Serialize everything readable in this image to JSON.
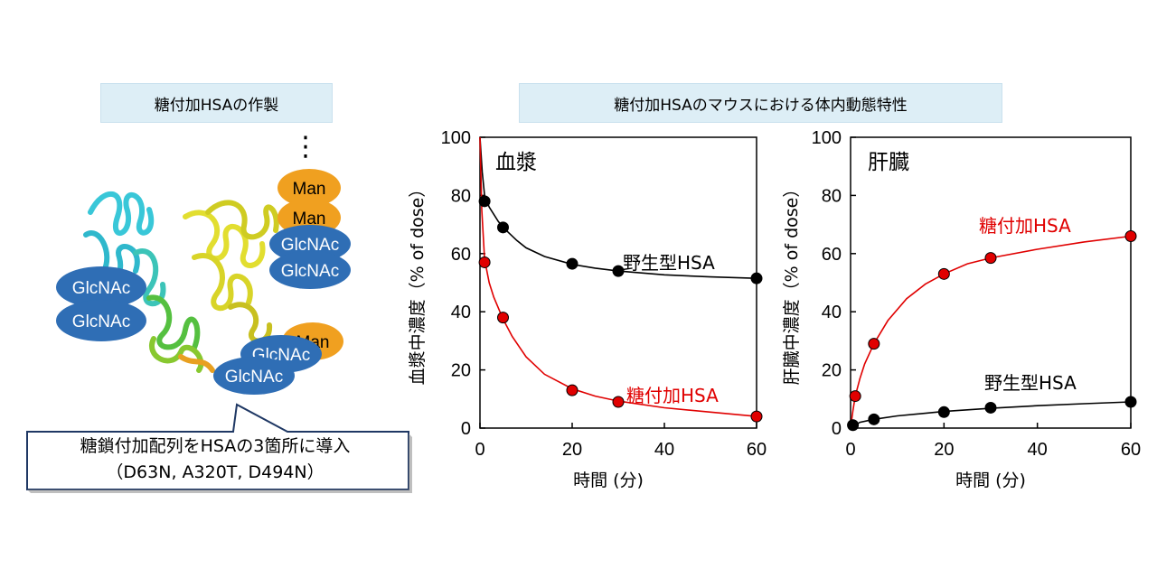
{
  "left_title": "糖付加HSAの作製",
  "right_title": "糖付加HSAのマウスにおける体内動態特性",
  "diagram": {
    "glycans": {
      "left": [
        "GlcNAc",
        "GlcNAc"
      ],
      "top_right": [
        "Man",
        "Man",
        "GlcNAc",
        "GlcNAc"
      ],
      "bottom_right": [
        "Man",
        "GlcNAc",
        "GlcNAc"
      ]
    },
    "ellipsis": "⋮",
    "callout": [
      "糖鎖付加配列をHSAの3箇所に導入",
      "（D63N, A320T, D494N）"
    ],
    "colors": {
      "glcnac": "#2f6eb5",
      "man": "#f0a020"
    }
  },
  "chart_data": [
    {
      "type": "scatter",
      "panel_label": "血漿",
      "xlabel": "時間 (分)",
      "ylabel": "血漿中濃度（% of dose）",
      "xlim": [
        0,
        60
      ],
      "ylim": [
        0,
        100
      ],
      "xticks": [
        "0",
        "20",
        "40",
        "60"
      ],
      "yticks": [
        "0",
        "20",
        "40",
        "60",
        "80",
        "100"
      ],
      "series": [
        {
          "name": "野生型HSA",
          "color": "#000000",
          "points": [
            [
              1,
              78
            ],
            [
              5,
              69
            ],
            [
              20,
              56.5
            ],
            [
              30,
              54
            ],
            [
              60,
              51.5
            ]
          ],
          "curve": [
            [
              0,
              100
            ],
            [
              0.5,
              88
            ],
            [
              1,
              80
            ],
            [
              2,
              76
            ],
            [
              4,
              71
            ],
            [
              6,
              67.5
            ],
            [
              8,
              64.5
            ],
            [
              10,
              62
            ],
            [
              14,
              59
            ],
            [
              20,
              56.3
            ],
            [
              25,
              55
            ],
            [
              30,
              54
            ],
            [
              40,
              52.7
            ],
            [
              50,
              52
            ],
            [
              60,
              51.5
            ]
          ]
        },
        {
          "name": "糖付加HSA",
          "color": "#e00000",
          "points": [
            [
              1,
              57
            ],
            [
              5,
              38
            ],
            [
              20,
              13
            ],
            [
              30,
              9
            ],
            [
              60,
              4
            ]
          ],
          "curve": [
            [
              0,
              100
            ],
            [
              0.4,
              75
            ],
            [
              1,
              58
            ],
            [
              2,
              50
            ],
            [
              3,
              45
            ],
            [
              5,
              37.5
            ],
            [
              7,
              31.5
            ],
            [
              10,
              24.5
            ],
            [
              14,
              18.5
            ],
            [
              20,
              13.5
            ],
            [
              25,
              11
            ],
            [
              30,
              9.3
            ],
            [
              40,
              7
            ],
            [
              50,
              5.5
            ],
            [
              60,
              4
            ]
          ]
        }
      ]
    },
    {
      "type": "scatter",
      "panel_label": "肝臓",
      "xlabel": "時間 (分)",
      "ylabel": "肝臓中濃度（% of dose）",
      "xlim": [
        0,
        60
      ],
      "ylim": [
        0,
        100
      ],
      "xticks": [
        "0",
        "20",
        "40",
        "60"
      ],
      "yticks": [
        "0",
        "20",
        "40",
        "60",
        "80",
        "100"
      ],
      "series": [
        {
          "name": "糖付加HSA",
          "color": "#e00000",
          "points": [
            [
              1,
              11
            ],
            [
              5,
              29
            ],
            [
              20,
              53
            ],
            [
              30,
              58.5
            ],
            [
              60,
              66
            ]
          ],
          "curve": [
            [
              0,
              0
            ],
            [
              0.5,
              6
            ],
            [
              1,
              11
            ],
            [
              2,
              17
            ],
            [
              3,
              22
            ],
            [
              5,
              29
            ],
            [
              8,
              37
            ],
            [
              12,
              44.5
            ],
            [
              16,
              49.5
            ],
            [
              20,
              53
            ],
            [
              25,
              56.5
            ],
            [
              30,
              58.5
            ],
            [
              40,
              61.5
            ],
            [
              50,
              64
            ],
            [
              60,
              66
            ]
          ]
        },
        {
          "name": "野生型HSA",
          "color": "#000000",
          "points": [
            [
              0.5,
              1
            ],
            [
              5,
              3
            ],
            [
              20,
              5.5
            ],
            [
              30,
              7
            ],
            [
              60,
              9
            ]
          ],
          "curve": [
            [
              0,
              0
            ],
            [
              2,
              2
            ],
            [
              5,
              3
            ],
            [
              10,
              4.2
            ],
            [
              20,
              5.7
            ],
            [
              30,
              6.8
            ],
            [
              40,
              7.7
            ],
            [
              50,
              8.4
            ],
            [
              60,
              9
            ]
          ]
        }
      ]
    }
  ]
}
